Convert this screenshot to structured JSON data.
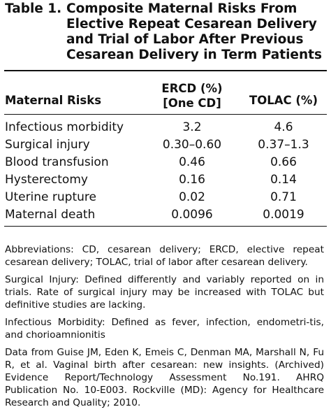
{
  "table": {
    "label": "Table 1.",
    "title": "Composite Maternal Risks From Elective Repeat Cesarean Delivery and Trial of Labor After Previous Cesarean Delivery in Term Patients"
  },
  "columns": {
    "risk": "Maternal Risks",
    "ercd_line1": "ERCD (%)",
    "ercd_line2": "[One CD]",
    "tolac": "TOLAC (%)"
  },
  "rows": [
    {
      "risk": "Infectious morbidity",
      "ercd": "3.2",
      "tolac": "4.6"
    },
    {
      "risk": "Surgical injury",
      "ercd": "0.30–0.60",
      "tolac": "0.37–1.3"
    },
    {
      "risk": "Blood transfusion",
      "ercd": "0.46",
      "tolac": "0.66"
    },
    {
      "risk": "Hysterectomy",
      "ercd": "0.16",
      "tolac": "0.14"
    },
    {
      "risk": "Uterine rupture",
      "ercd": "0.02",
      "tolac": "0.71"
    },
    {
      "risk": "Maternal death",
      "ercd": "0.0096",
      "tolac": "0.0019"
    }
  ],
  "notes": [
    "Abbreviations: CD, cesarean delivery; ERCD, elective repeat cesarean delivery; TOLAC, trial of labor after cesarean delivery.",
    "Surgical Injury: Defined differently and variably reported on in trials. Rate of surgical injury may be increased with TOLAC but definitive studies are lacking.",
    "Infectious Morbidity: Defined as fever, infection, endometri-tis, and chorioamnionitis",
    "Data from Guise JM, Eden K, Emeis C, Denman MA, Marshall N, Fu R, et al. Vaginal birth after cesarean: new insights. (Archived) Evidence Report/Technology Assessment No.191. AHRQ Publication No. 10-E003. Rockville (MD): Agency for Healthcare Research and Quality; 2010."
  ]
}
